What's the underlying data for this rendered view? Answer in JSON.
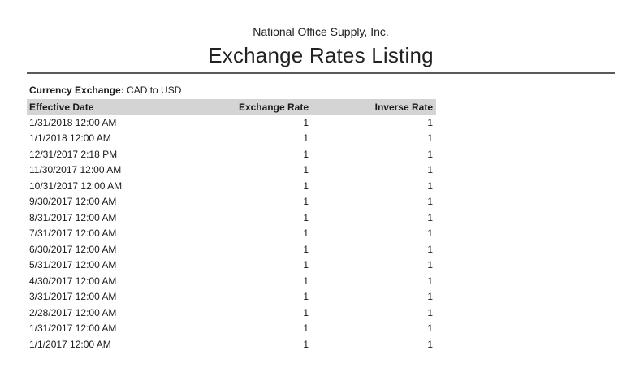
{
  "header": {
    "company": "National Office Supply, Inc.",
    "title": "Exchange Rates Listing"
  },
  "filter": {
    "label": "Currency Exchange:",
    "value": "CAD to USD"
  },
  "table": {
    "columns": [
      "Effective Date",
      "Exchange Rate",
      "Inverse Rate"
    ],
    "rows": [
      [
        "1/31/2018 12:00 AM",
        "1",
        "1"
      ],
      [
        "1/1/2018 12:00 AM",
        "1",
        "1"
      ],
      [
        "12/31/2017 2:18 PM",
        "1",
        "1"
      ],
      [
        "11/30/2017 12:00 AM",
        "1",
        "1"
      ],
      [
        "10/31/2017 12:00 AM",
        "1",
        "1"
      ],
      [
        "9/30/2017 12:00 AM",
        "1",
        "1"
      ],
      [
        "8/31/2017 12:00 AM",
        "1",
        "1"
      ],
      [
        "7/31/2017 12:00 AM",
        "1",
        "1"
      ],
      [
        "6/30/2017 12:00 AM",
        "1",
        "1"
      ],
      [
        "5/31/2017 12:00 AM",
        "1",
        "1"
      ],
      [
        "4/30/2017 12:00 AM",
        "1",
        "1"
      ],
      [
        "3/31/2017 12:00 AM",
        "1",
        "1"
      ],
      [
        "2/28/2017 12:00 AM",
        "1",
        "1"
      ],
      [
        "1/31/2017 12:00 AM",
        "1",
        "1"
      ],
      [
        "1/1/2017 12:00 AM",
        "1",
        "1"
      ]
    ]
  },
  "colors": {
    "header_bg": "#d4d4d4",
    "text": "#1a1a1a",
    "rule_dark": "#595959",
    "rule_light": "#a9a9a9"
  }
}
